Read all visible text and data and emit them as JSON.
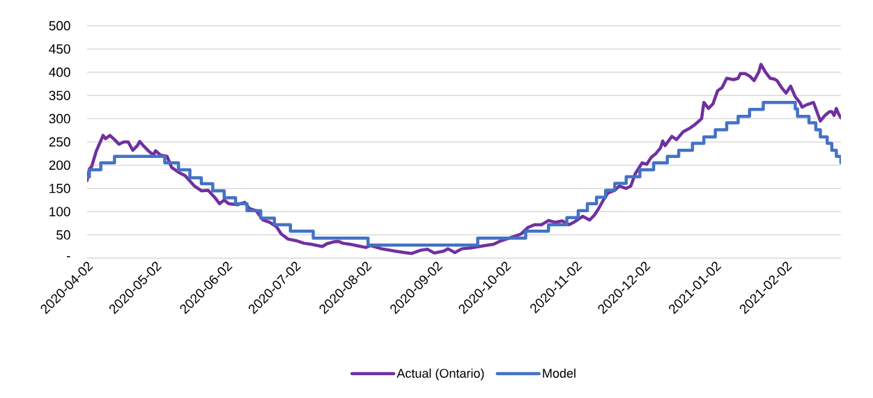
{
  "chart_data": {
    "type": "line",
    "xlim": [
      "2020-04-02",
      "2021-02-26"
    ],
    "xticks": [
      "2020-04-02",
      "2020-05-02",
      "2020-06-02",
      "2020-07-02",
      "2020-08-02",
      "2020-09-02",
      "2020-10-02",
      "2020-11-02",
      "2020-12-02",
      "2021-01-02",
      "2021-02-02"
    ],
    "ylim": [
      0,
      500
    ],
    "yticks": [
      {
        "value": 0,
        "label": "-"
      },
      50,
      100,
      150,
      200,
      250,
      300,
      350,
      400,
      450,
      500
    ],
    "grid": "y",
    "legend": "bottom",
    "line_style": "solid",
    "series": [
      {
        "name": "Actual (Ontario)",
        "color": "#7030a0",
        "x": [
          "2020-04-02",
          "2020-04-03",
          "2020-04-04",
          "2020-04-06",
          "2020-04-09",
          "2020-04-10",
          "2020-04-12",
          "2020-04-14",
          "2020-04-16",
          "2020-04-18",
          "2020-04-20",
          "2020-04-22",
          "2020-04-24",
          "2020-04-25",
          "2020-04-27",
          "2020-04-29",
          "2020-05-01",
          "2020-05-02",
          "2020-05-04",
          "2020-05-07",
          "2020-05-09",
          "2020-05-12",
          "2020-05-15",
          "2020-05-19",
          "2020-05-22",
          "2020-05-25",
          "2020-05-28",
          "2020-05-30",
          "2020-06-01",
          "2020-06-03",
          "2020-06-07",
          "2020-06-10",
          "2020-06-12",
          "2020-06-15",
          "2020-06-18",
          "2020-06-21",
          "2020-06-24",
          "2020-06-26",
          "2020-06-29",
          "2020-07-03",
          "2020-07-06",
          "2020-07-09",
          "2020-07-12",
          "2020-07-14",
          "2020-07-16",
          "2020-07-19",
          "2020-07-21",
          "2020-07-23",
          "2020-07-26",
          "2020-07-29",
          "2020-08-02",
          "2020-08-04",
          "2020-08-09",
          "2020-08-15",
          "2020-08-19",
          "2020-08-22",
          "2020-08-26",
          "2020-08-29",
          "2020-09-01",
          "2020-09-05",
          "2020-09-07",
          "2020-09-10",
          "2020-09-13",
          "2020-09-17",
          "2020-09-23",
          "2020-09-27",
          "2020-09-30",
          "2020-10-05",
          "2020-10-09",
          "2020-10-12",
          "2020-10-15",
          "2020-10-18",
          "2020-10-21",
          "2020-10-24",
          "2020-10-27",
          "2020-10-30",
          "2020-11-01",
          "2020-11-05",
          "2020-11-08",
          "2020-11-10",
          "2020-11-12",
          "2020-11-14",
          "2020-11-16",
          "2020-11-19",
          "2020-11-21",
          "2020-11-24",
          "2020-11-26",
          "2020-11-28",
          "2020-12-01",
          "2020-12-03",
          "2020-12-05",
          "2020-12-07",
          "2020-12-09",
          "2020-12-10",
          "2020-12-11",
          "2020-12-14",
          "2020-12-16",
          "2020-12-19",
          "2020-12-22",
          "2020-12-24",
          "2020-12-27",
          "2020-12-28",
          "2020-12-30",
          "2021-01-01",
          "2021-01-03",
          "2021-01-05",
          "2021-01-07",
          "2021-01-10",
          "2021-01-12",
          "2021-01-13",
          "2021-01-15",
          "2021-01-17",
          "2021-01-19",
          "2021-01-21",
          "2021-01-22",
          "2021-01-24",
          "2021-01-26",
          "2021-01-28",
          "2021-01-29",
          "2021-01-31",
          "2021-02-02",
          "2021-02-04",
          "2021-02-06",
          "2021-02-08",
          "2021-02-09",
          "2021-02-11",
          "2021-02-14",
          "2021-02-17",
          "2021-02-19",
          "2021-02-21",
          "2021-02-22",
          "2021-02-23",
          "2021-02-24",
          "2021-02-25",
          "2021-02-26"
        ],
        "values": [
          167,
          192,
          197,
          230,
          264,
          257,
          264,
          255,
          245,
          250,
          250,
          232,
          242,
          251,
          240,
          230,
          222,
          231,
          222,
          219,
          195,
          185,
          177,
          155,
          145,
          146,
          130,
          117,
          125,
          117,
          115,
          120,
          107,
          102,
          82,
          77,
          67,
          52,
          41,
          37,
          32,
          30,
          27,
          25,
          31,
          35,
          36,
          32,
          30,
          27,
          23,
          27,
          20,
          15,
          12,
          10,
          17,
          19,
          11,
          15,
          20,
          12,
          20,
          22,
          27,
          30,
          37,
          45,
          52,
          66,
          72,
          72,
          81,
          77,
          80,
          72,
          77,
          90,
          82,
          92,
          107,
          125,
          140,
          146,
          155,
          150,
          155,
          182,
          205,
          202,
          217,
          225,
          237,
          252,
          242,
          262,
          255,
          272,
          280,
          287,
          300,
          335,
          322,
          332,
          360,
          367,
          387,
          384,
          387,
          397,
          397,
          392,
          382,
          400,
          417,
          400,
          387,
          385,
          382,
          367,
          355,
          370,
          347,
          335,
          325,
          330,
          335,
          295,
          307,
          315,
          315,
          307,
          322,
          310,
          302
        ]
      },
      {
        "name": "Model",
        "type": "step",
        "color": "#4472c4",
        "x": [
          "2020-04-02",
          "2020-04-03",
          "2020-04-08",
          "2020-04-14",
          "2020-05-06",
          "2020-05-12",
          "2020-05-17",
          "2020-05-22",
          "2020-05-27",
          "2020-06-01",
          "2020-06-06",
          "2020-06-11",
          "2020-06-17",
          "2020-06-23",
          "2020-06-30",
          "2020-07-10",
          "2020-08-03",
          "2020-09-20",
          "2020-10-11",
          "2020-10-21",
          "2020-10-29",
          "2020-11-03",
          "2020-11-07",
          "2020-11-11",
          "2020-11-15",
          "2020-11-19",
          "2020-11-24",
          "2020-11-30",
          "2020-12-06",
          "2020-12-12",
          "2020-12-17",
          "2020-12-23",
          "2020-12-28",
          "2021-01-02",
          "2021-01-07",
          "2021-01-12",
          "2021-01-17",
          "2021-01-23",
          "2021-02-06",
          "2021-02-07",
          "2021-02-12",
          "2021-02-15",
          "2021-02-17",
          "2021-02-20",
          "2021-02-22",
          "2021-02-24",
          "2021-02-26"
        ],
        "values": [
          175,
          190,
          205,
          219,
          205,
          190,
          173,
          160,
          145,
          130,
          117,
          102,
          86,
          72,
          58,
          43,
          28,
          43,
          58,
          72,
          87,
          102,
          117,
          131,
          146,
          161,
          175,
          190,
          205,
          219,
          232,
          247,
          261,
          276,
          291,
          305,
          320,
          335,
          321,
          305,
          291,
          276,
          261,
          247,
          232,
          219,
          205
        ]
      }
    ]
  }
}
